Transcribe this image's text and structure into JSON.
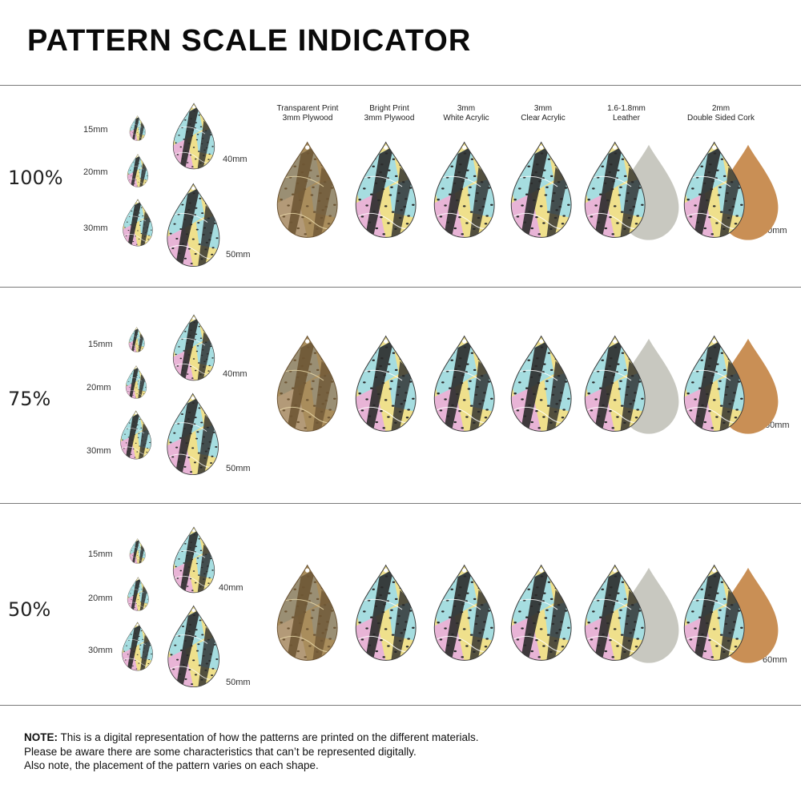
{
  "title": "PATTERN SCALE INDICATOR",
  "materials": [
    {
      "line1": "Transparent Print",
      "line2": "3mm Plywood"
    },
    {
      "line1": "Bright Print",
      "line2": "3mm Plywood"
    },
    {
      "line1": "3mm",
      "line2": "White Acrylic"
    },
    {
      "line1": "3mm",
      "line2": "Clear Acrylic"
    },
    {
      "line1": "1.6-1.8mm",
      "line2": "Leather"
    },
    {
      "line1": "2mm",
      "line2": "Double Sided Cork"
    }
  ],
  "sections": [
    {
      "scale": "100%",
      "sizes": {
        "s15": "15mm",
        "s20": "20mm",
        "s30": "30mm",
        "s40": "40mm",
        "s50": "50mm",
        "s60": "60mm"
      }
    },
    {
      "scale": "75%",
      "sizes": {
        "s15": "15mm",
        "s20": "20mm",
        "s30": "30mm",
        "s40": "40mm",
        "s50": "50mm",
        "s60": "60mm"
      }
    },
    {
      "scale": "50%",
      "sizes": {
        "s15": "15mm",
        "s20": "20mm",
        "s30": "30mm",
        "s40": "40mm",
        "s50": "50mm",
        "s60": "60mm"
      }
    }
  ],
  "note": {
    "label": "NOTE:",
    "line1": " This is a digital representation of how the patterns are printed on the different materials.",
    "line2": "Please be aware there are some characteristics that can’t be represented digitally.",
    "line3": "Also note, the placement of the pattern varies on each shape."
  },
  "colors": {
    "pattern_yellow": "#efe08c",
    "pattern_blue": "#a6dde0",
    "pattern_pink": "#e8b4d6",
    "pattern_dark": "#2b2b2b",
    "plywood": "#a98d5c",
    "leather_back": "#c8c8c0",
    "cork_back": "#c98f55",
    "rule": "#7a7a7a"
  }
}
